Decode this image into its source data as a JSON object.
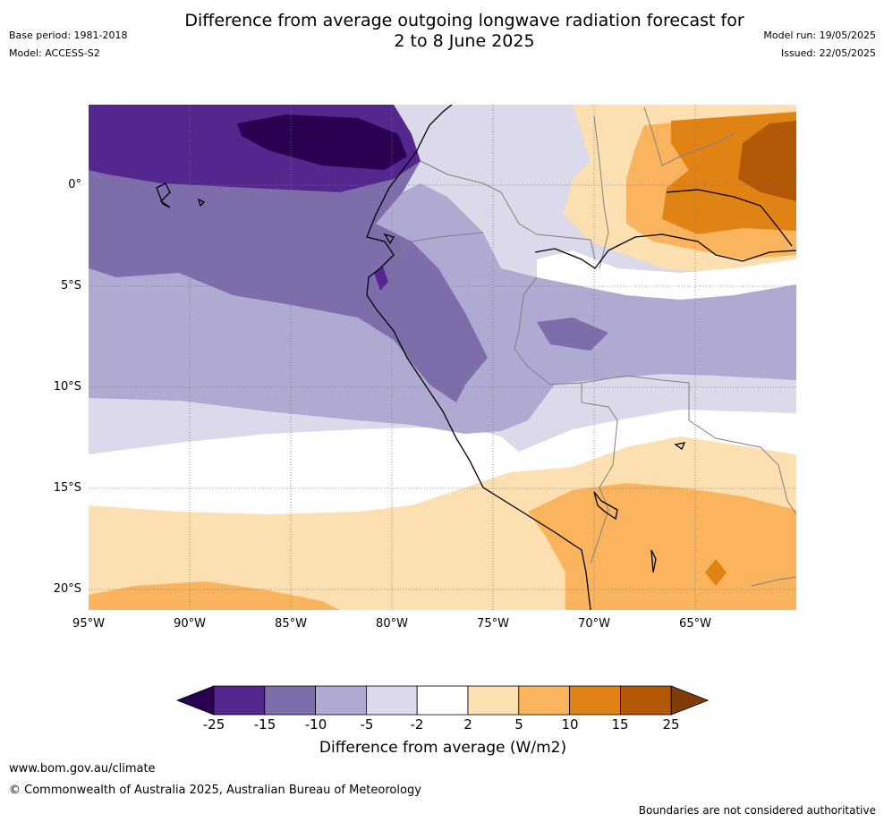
{
  "title_line1": "Difference from average outgoing longwave radiation forecast for",
  "title_line2": "2 to 8 June 2025",
  "base_period": "Base period: 1981-2018",
  "model": "Model: ACCESS-S2",
  "model_run": "Model run: 19/05/2025",
  "issued": "Issued: 22/05/2025",
  "lat_labels": [
    "0°",
    "5°S",
    "10°S",
    "15°S",
    "20°S"
  ],
  "lon_labels": [
    "95°W",
    "90°W",
    "85°W",
    "80°W",
    "75°W",
    "70°W",
    "65°W"
  ],
  "colorbar": {
    "ticks": [
      "-25",
      "-15",
      "-10",
      "-5",
      "-2",
      "2",
      "5",
      "10",
      "15",
      "25"
    ],
    "colors": [
      "#2a0051",
      "#54278f",
      "#7d6daa",
      "#b0a9d1",
      "#dadaeb",
      "#ffffff",
      "#fde0b1",
      "#fbb45e",
      "#e08214",
      "#b35806",
      "#7f3b08"
    ],
    "title": "Difference from average (W/m2)"
  },
  "website": "www.bom.gov.au/climate",
  "copyright": "© Commonwealth of Australia 2025, Australian Bureau of Meteorology",
  "disclaimer": "Boundaries are not considered authoritative"
}
